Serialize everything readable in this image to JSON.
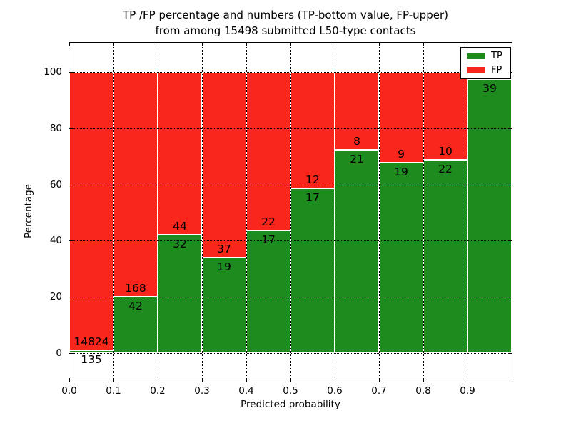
{
  "chart_data": {
    "type": "bar",
    "stacked": true,
    "normalized_to_percent": true,
    "title_line1": "TP /FP percentage and numbers (TP-bottom value, FP-upper)",
    "title_line2": "from among 15498 submitted L50-type contacts",
    "xlabel": "Predicted probability",
    "ylabel": "Percentage",
    "x_tick_labels": [
      "0.0",
      "0.1",
      "0.2",
      "0.3",
      "0.4",
      "0.5",
      "0.6",
      "0.7",
      "0.8",
      "0.9"
    ],
    "y_tick_values": [
      0,
      20,
      40,
      60,
      80,
      100
    ],
    "xlim": [
      0.0,
      1.0
    ],
    "ylim": [
      -10.4,
      110.4
    ],
    "grid": true,
    "colors": {
      "tp": "#1e8b1e",
      "fp": "#f9261b",
      "frame": "#000000",
      "background": "#ffffff"
    },
    "legend": {
      "position": "upper right",
      "entries": [
        {
          "label": "TP",
          "color": "#1e8b1e"
        },
        {
          "label": "FP",
          "color": "#f9261b"
        }
      ]
    },
    "bins": [
      {
        "range": [
          0.0,
          0.1
        ],
        "tp": 135,
        "fp": 14824,
        "tp_pct": 0.9,
        "tp_label": "135",
        "fp_label": "14824"
      },
      {
        "range": [
          0.1,
          0.2
        ],
        "tp": 42,
        "fp": 168,
        "tp_pct": 20.0,
        "tp_label": "42",
        "fp_label": "168"
      },
      {
        "range": [
          0.2,
          0.3
        ],
        "tp": 32,
        "fp": 44,
        "tp_pct": 42.11,
        "tp_label": "32",
        "fp_label": "44"
      },
      {
        "range": [
          0.3,
          0.4
        ],
        "tp": 19,
        "fp": 37,
        "tp_pct": 33.93,
        "tp_label": "19",
        "fp_label": "37"
      },
      {
        "range": [
          0.4,
          0.5
        ],
        "tp": 17,
        "fp": 22,
        "tp_pct": 43.59,
        "tp_label": "17",
        "fp_label": "22"
      },
      {
        "range": [
          0.5,
          0.6
        ],
        "tp": 17,
        "fp": 12,
        "tp_pct": 58.62,
        "tp_label": "17",
        "fp_label": "12"
      },
      {
        "range": [
          0.6,
          0.7
        ],
        "tp": 21,
        "fp": 8,
        "tp_pct": 72.41,
        "tp_label": "21",
        "fp_label": "8"
      },
      {
        "range": [
          0.7,
          0.8
        ],
        "tp": 19,
        "fp": 9,
        "tp_pct": 67.86,
        "tp_label": "19",
        "fp_label": "9"
      },
      {
        "range": [
          0.8,
          0.9
        ],
        "tp": 22,
        "fp": 10,
        "tp_pct": 68.75,
        "tp_label": "22",
        "fp_label": "10"
      },
      {
        "range": [
          0.9,
          1.0
        ],
        "tp": 39,
        "fp": 1,
        "tp_pct": 97.5,
        "tp_label": "39",
        "fp_label": ""
      }
    ]
  }
}
